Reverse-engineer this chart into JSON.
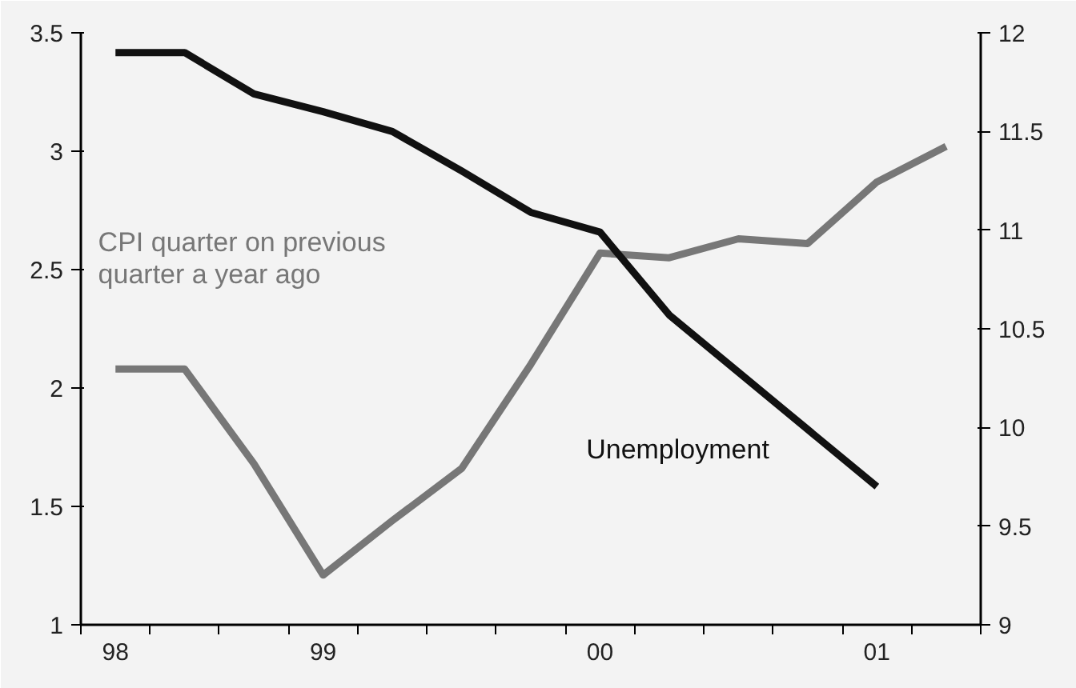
{
  "chart_data": {
    "type": "line",
    "categories": [
      "98",
      null,
      null,
      "99",
      null,
      null,
      null,
      "00",
      null,
      null,
      null,
      "01",
      null
    ],
    "ylim": [
      1,
      3.5
    ],
    "yticks": [
      1,
      1.5,
      2,
      2.5,
      3,
      3.5
    ],
    "y2lim": [
      9,
      12
    ],
    "y2ticks": [
      9,
      9.5,
      10,
      10.5,
      11,
      11.5,
      12
    ],
    "series": [
      {
        "name": "CPI quarter on previous quarter a year ago",
        "color": "#777777",
        "values": [
          2.08,
          2.08,
          1.68,
          1.21,
          1.44,
          1.66,
          2.1,
          2.57,
          2.55,
          2.63,
          2.61,
          2.87,
          3.02
        ]
      },
      {
        "name": "Unemployment",
        "color": "#111111",
        "axis": "y2",
        "values": [
          11.9,
          11.9,
          11.69,
          11.6,
          11.5,
          11.3,
          11.09,
          10.99,
          10.57,
          10.28,
          9.99,
          9.7,
          null
        ]
      }
    ]
  }
}
